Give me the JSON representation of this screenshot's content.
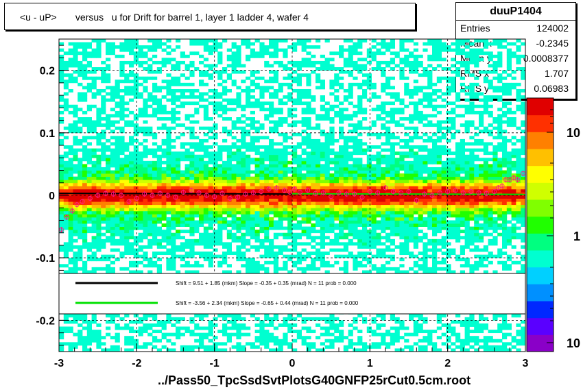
{
  "title": "<u - uP>       versus   u for Drift for barrel 1, layer 1 ladder 4, wafer 4",
  "stats": {
    "name": "duuP1404",
    "rows": [
      {
        "label": "Entries",
        "value": "124002"
      },
      {
        "label": "Mean x",
        "value": "-0.2345"
      },
      {
        "label": "Mean y",
        "value": "0.0008377"
      },
      {
        "label": "RMS x",
        "value": "1.707"
      },
      {
        "label": "RMS y",
        "value": "0.06983"
      }
    ]
  },
  "footer": "../Pass50_TpcSsdSvtPlotsG40GNFP25rCut0.5cm.root",
  "legend": {
    "entries": [
      {
        "color": "#000000",
        "text": "Shift =    9.51 + 1.85 (mkm) Slope =    -0.35 + 0.35 (mrad)  N = 11 prob = 0.000"
      },
      {
        "color": "#00e000",
        "text": "Shift =   -3.56 + 2.34 (mkm) Slope =    -0.65 + 0.44 (mrad)  N = 11 prob = 0.000"
      }
    ]
  },
  "chart_data": {
    "type": "heatmap",
    "title": "<u - uP>       versus   u for Drift for barrel 1, layer 1 ladder 4, wafer 4",
    "xlim": [
      -3,
      3
    ],
    "ylim": [
      -0.25,
      0.25
    ],
    "x_ticks": [
      -3,
      -2,
      -1,
      0,
      1,
      2,
      3
    ],
    "x_tick_labels": [
      "-3",
      "-2",
      "-1",
      "0",
      "1",
      "2",
      "3"
    ],
    "y_ticks": [
      -0.2,
      -0.1,
      0,
      0.1,
      0.2
    ],
    "y_tick_labels": [
      "-0.2",
      "-0.1",
      "0",
      "0.1",
      "0.2"
    ],
    "grid": true,
    "colorbar": {
      "scale": "log",
      "tick_labels": [
        "10",
        "1",
        "10"
      ]
    },
    "colors": [
      "#8a00c8",
      "#5a00ff",
      "#0028ff",
      "#0090ff",
      "#00d0ff",
      "#00ffd0",
      "#00ff80",
      "#20ff00",
      "#80ff00",
      "#d0ff00",
      "#ffff00",
      "#ffc000",
      "#ff8000",
      "#ff3000",
      "#e00000"
    ],
    "profile_points": {
      "x": [
        -2.97,
        -2.9,
        -2.83,
        -2.77,
        -2.7,
        -2.6,
        -2.5,
        -2.4,
        -2.3,
        -2.2,
        -2.1,
        -2.0,
        -1.9,
        -1.8,
        -1.7,
        -1.6,
        -1.5,
        -1.4,
        -1.3,
        -1.2,
        -1.1,
        -1.0,
        -0.9,
        -0.8,
        -0.7,
        -0.6,
        -0.5,
        -0.4,
        -0.3,
        -0.2,
        -0.1,
        -0.03,
        0.03,
        0.1,
        0.2,
        0.3,
        0.4,
        0.5,
        0.6,
        0.7,
        0.8,
        0.9,
        1.0,
        1.1,
        1.2,
        1.3,
        1.4,
        1.5,
        1.6,
        1.7,
        1.8,
        1.9,
        2.0,
        2.1,
        2.2,
        2.3,
        2.4,
        2.5,
        2.6,
        2.65,
        2.7,
        2.75,
        2.8,
        2.85,
        2.9,
        2.97
      ],
      "y": [
        -0.055,
        -0.035,
        -0.025,
        -0.015,
        -0.01,
        -0.005,
        0.0,
        0.003,
        0.002,
        0.0,
        -0.01,
        -0.005,
        0.002,
        0.0,
        0.003,
        0.0,
        -0.003,
        0.005,
        0.008,
        0.004,
        0.0,
        -0.002,
        0.003,
        -0.005,
        -0.003,
        0.002,
        0.004,
        0.006,
        0.01,
        0.012,
        0.008,
        0.005,
        0.01,
        0.005,
        0.008,
        0.003,
        0.004,
        -0.002,
        0.004,
        0.002,
        0.002,
        -0.003,
        0.006,
        0.004,
        0.012,
        0.006,
        0.004,
        0.006,
        -0.008,
        0.002,
        0.0,
        0.004,
        0.006,
        0.008,
        0.004,
        0.006,
        0.004,
        0.003,
        0.006,
        0.012,
        0.015,
        0.025,
        0.025,
        0.028,
        0.025,
        0.035
      ]
    },
    "fit_lines": [
      {
        "color": "#000000",
        "x": [
          -3,
          0
        ],
        "y": [
          0.0031,
          0.002
        ]
      },
      {
        "color": "#00e000",
        "x": [
          0,
          3
        ],
        "y": [
          0.0025,
          0.0015
        ]
      }
    ]
  }
}
